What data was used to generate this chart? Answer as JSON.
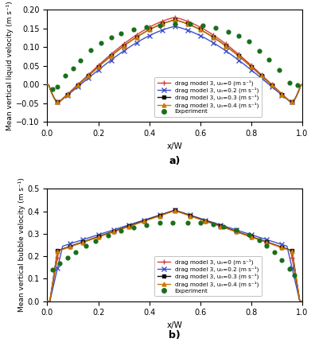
{
  "panel_a": {
    "ylabel": "Mean vertical liquid velocity (m s⁻¹)",
    "xlabel": "x/W",
    "label": "a)",
    "ylim": [
      -0.1,
      0.2
    ],
    "xlim": [
      0,
      1
    ],
    "yticks": [
      -0.1,
      -0.05,
      0.0,
      0.05,
      0.1,
      0.15,
      0.2
    ],
    "xticks": [
      0,
      0.2,
      0.4,
      0.6,
      0.8,
      1.0
    ],
    "lines": [
      {
        "label": "drag model 3, u₀=0 (m s⁻¹)",
        "color": "#d44040",
        "marker": "+",
        "markersize": 5,
        "lw": 1.0
      },
      {
        "label": "drag model 3, u₀=0.2 (m s⁻¹)",
        "color": "#4050c8",
        "marker": "x",
        "markersize": 5,
        "lw": 1.0
      },
      {
        "label": "drag model 3, u₀=0.3 (m s⁻¹)",
        "color": "#101010",
        "marker": "s",
        "markersize": 3.5,
        "lw": 1.0
      },
      {
        "label": "drag model 3, u₀=0.4 (m s⁻¹)",
        "color": "#d07800",
        "marker": "^",
        "markersize": 3.5,
        "lw": 1.0
      }
    ],
    "experiment_label": "Experiment",
    "experiment_color": "#1a6e1a",
    "exp_x": [
      0.02,
      0.04,
      0.07,
      0.1,
      0.13,
      0.17,
      0.21,
      0.25,
      0.29,
      0.34,
      0.39,
      0.44,
      0.5,
      0.56,
      0.61,
      0.66,
      0.71,
      0.75,
      0.79,
      0.83,
      0.87,
      0.91,
      0.95,
      0.98
    ],
    "exp_y": [
      -0.012,
      -0.005,
      0.025,
      0.043,
      0.065,
      0.093,
      0.111,
      0.126,
      0.137,
      0.147,
      0.155,
      0.159,
      0.163,
      0.163,
      0.158,
      0.151,
      0.141,
      0.13,
      0.115,
      0.091,
      0.067,
      0.04,
      0.005,
      -0.001
    ]
  },
  "panel_b": {
    "ylabel": "Mean vertical bubble velocity (m s⁻¹)",
    "xlabel": "x/W",
    "label": "b)",
    "ylim": [
      0,
      0.5
    ],
    "xlim": [
      0,
      1
    ],
    "yticks": [
      0,
      0.1,
      0.2,
      0.3,
      0.4,
      0.5
    ],
    "xticks": [
      0,
      0.2,
      0.4,
      0.6,
      0.8,
      1.0
    ],
    "lines": [
      {
        "label": "drag model 3, u₀=0 (m s⁻¹)",
        "color": "#d44040",
        "marker": "+",
        "markersize": 5,
        "lw": 1.0
      },
      {
        "label": "drag model 3, u₀=0.2 (m s⁻¹)",
        "color": "#4050c8",
        "marker": "x",
        "markersize": 5,
        "lw": 1.0
      },
      {
        "label": "drag model 3, u₀=0.3 (m s⁻¹)",
        "color": "#101010",
        "marker": "s",
        "markersize": 3.5,
        "lw": 1.0
      },
      {
        "label": "drag model 3, u₀=0.4 (m s⁻¹)",
        "color": "#d07800",
        "marker": "^",
        "markersize": 3.5,
        "lw": 1.0
      }
    ],
    "experiment_label": "Experiment",
    "experiment_color": "#1a6e1a",
    "exp_x": [
      0.02,
      0.05,
      0.08,
      0.11,
      0.15,
      0.19,
      0.24,
      0.29,
      0.34,
      0.39,
      0.44,
      0.49,
      0.55,
      0.6,
      0.65,
      0.69,
      0.74,
      0.79,
      0.83,
      0.86,
      0.89,
      0.92,
      0.95,
      0.97
    ],
    "exp_y": [
      0.14,
      0.17,
      0.195,
      0.218,
      0.245,
      0.267,
      0.291,
      0.313,
      0.328,
      0.34,
      0.348,
      0.35,
      0.35,
      0.349,
      0.343,
      0.333,
      0.316,
      0.296,
      0.272,
      0.248,
      0.218,
      0.183,
      0.145,
      0.115
    ]
  },
  "background_color": "#ffffff"
}
